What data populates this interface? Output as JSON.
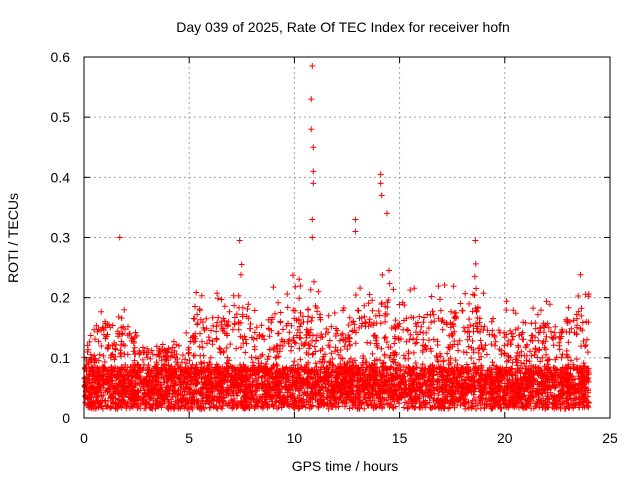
{
  "chart_data": {
    "type": "scatter",
    "title": "Day 039 of 2025, Rate Of TEC Index for receiver hofn",
    "xlabel": "GPS time / hours",
    "ylabel": "ROTI / TECUs",
    "xlim": [
      0,
      25
    ],
    "ylim": [
      0,
      0.6
    ],
    "x_ticks": [
      0,
      5,
      10,
      15,
      20,
      25
    ],
    "y_ticks": [
      0,
      0.1,
      0.2,
      0.3,
      0.4,
      0.5,
      0.6
    ],
    "x_tick_labels": [
      "0",
      "5",
      "10",
      "15",
      "20",
      "25"
    ],
    "y_tick_labels": [
      "0",
      "0.1",
      "0.2",
      "0.3",
      "0.4",
      "0.5",
      "0.6"
    ],
    "grid": true,
    "marker": "+",
    "color": "#ff0000",
    "series": [
      {
        "name": "ROTI",
        "description": "Dense cloud of ~5000 observations between 0 and 24 h, baseline ~0.02-0.12, frequent spikes to 0.2-0.3",
        "notable_points": [
          {
            "x": 1.7,
            "y": 0.3
          },
          {
            "x": 10.85,
            "y": 0.585
          },
          {
            "x": 10.8,
            "y": 0.53
          },
          {
            "x": 10.8,
            "y": 0.48
          },
          {
            "x": 10.9,
            "y": 0.45
          },
          {
            "x": 10.9,
            "y": 0.41
          },
          {
            "x": 10.9,
            "y": 0.39
          },
          {
            "x": 10.85,
            "y": 0.33
          },
          {
            "x": 10.85,
            "y": 0.3
          },
          {
            "x": 12.9,
            "y": 0.33
          },
          {
            "x": 12.9,
            "y": 0.31
          },
          {
            "x": 14.1,
            "y": 0.405
          },
          {
            "x": 14.1,
            "y": 0.39
          },
          {
            "x": 14.15,
            "y": 0.37
          },
          {
            "x": 14.4,
            "y": 0.34
          },
          {
            "x": 18.6,
            "y": 0.295
          },
          {
            "x": 7.4,
            "y": 0.295
          },
          {
            "x": 23.6,
            "y": 0.238
          }
        ],
        "envelope": {
          "hours": [
            0,
            0.5,
            1,
            1.5,
            2,
            2.5,
            3,
            3.5,
            4,
            4.5,
            5,
            5.5,
            6,
            6.5,
            7,
            7.5,
            8,
            8.5,
            9,
            9.5,
            10,
            10.5,
            11,
            11.5,
            12,
            12.5,
            13,
            13.5,
            14,
            14.5,
            15,
            15.5,
            16,
            16.5,
            17,
            17.5,
            18,
            18.5,
            19,
            19.5,
            20,
            20.5,
            21,
            21.5,
            22,
            22.5,
            23,
            23.5,
            24
          ],
          "typical_max": [
            0.12,
            0.16,
            0.22,
            0.18,
            0.2,
            0.14,
            0.12,
            0.13,
            0.12,
            0.14,
            0.15,
            0.24,
            0.19,
            0.22,
            0.21,
            0.26,
            0.19,
            0.16,
            0.22,
            0.23,
            0.24,
            0.22,
            0.27,
            0.19,
            0.18,
            0.19,
            0.25,
            0.2,
            0.28,
            0.25,
            0.2,
            0.22,
            0.21,
            0.24,
            0.22,
            0.23,
            0.27,
            0.28,
            0.21,
            0.17,
            0.2,
            0.18,
            0.17,
            0.19,
            0.2,
            0.19,
            0.21,
            0.23,
            0.21
          ]
        }
      }
    ]
  }
}
